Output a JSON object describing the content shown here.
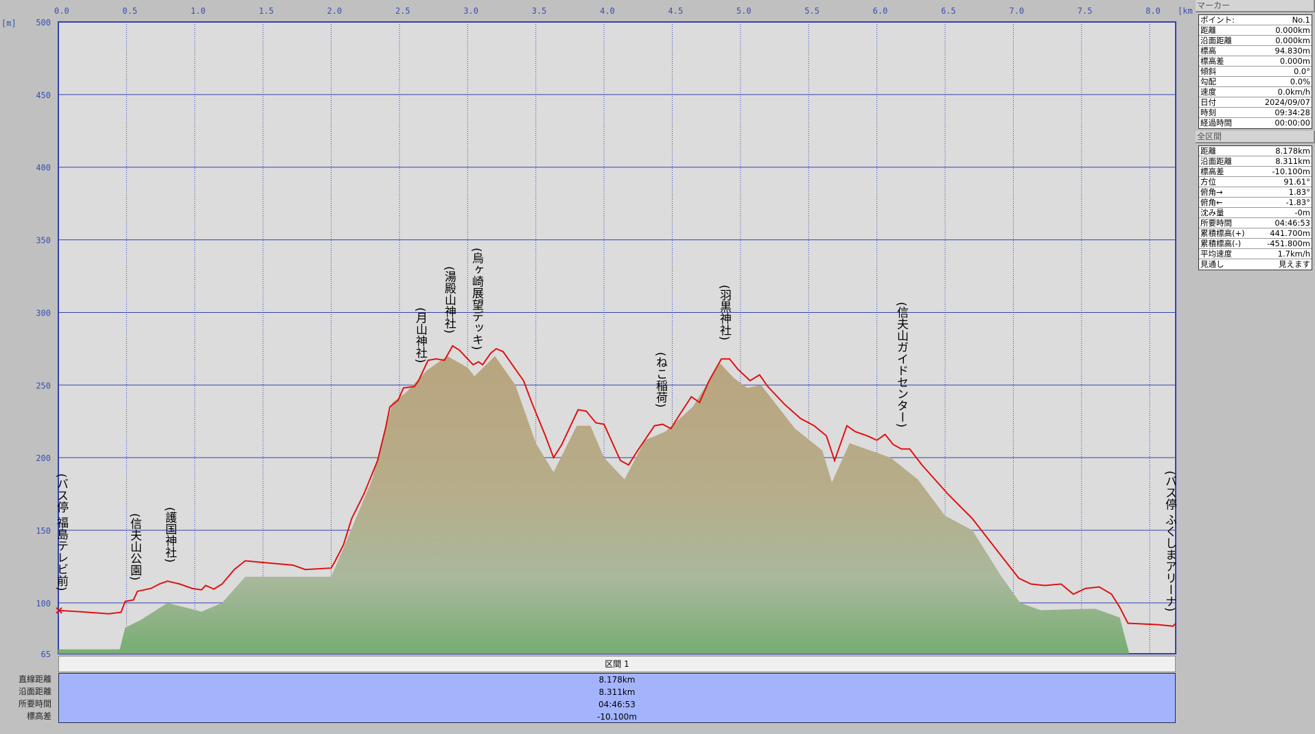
{
  "chart_data": {
    "type": "area",
    "xlabel": "[km]",
    "ylabel": "[m]",
    "xlim": [
      0,
      8.19
    ],
    "ylim": [
      65,
      500
    ],
    "x_ticks": [
      "0.0",
      "0.5",
      "1.0",
      "1.5",
      "2.0",
      "2.5",
      "3.0",
      "3.5",
      "4.0",
      "4.5",
      "5.0",
      "5.5",
      "6.0",
      "6.5",
      "7.0",
      "7.5",
      "8.0"
    ],
    "y_ticks": [
      "500",
      "450",
      "400",
      "350",
      "300",
      "250",
      "200",
      "150",
      "100",
      "65"
    ],
    "grid": true,
    "route_color": "#e01010",
    "route": [
      [
        0,
        94.8
      ],
      [
        0.15,
        94
      ],
      [
        0.37,
        92.5
      ],
      [
        0.46,
        93.6
      ],
      [
        0.49,
        101
      ],
      [
        0.55,
        102
      ],
      [
        0.58,
        108
      ],
      [
        0.68,
        110
      ],
      [
        0.74,
        113
      ],
      [
        0.8,
        115
      ],
      [
        0.89,
        113
      ],
      [
        0.98,
        110
      ],
      [
        1.05,
        109
      ],
      [
        1.08,
        112
      ],
      [
        1.14,
        109.5
      ],
      [
        1.2,
        113
      ],
      [
        1.29,
        123
      ],
      [
        1.37,
        129
      ],
      [
        1.48,
        128
      ],
      [
        1.72,
        126
      ],
      [
        1.81,
        123
      ],
      [
        2.0,
        124
      ],
      [
        2.03,
        129
      ],
      [
        2.09,
        140
      ],
      [
        2.15,
        158
      ],
      [
        2.24,
        175
      ],
      [
        2.34,
        198
      ],
      [
        2.4,
        221
      ],
      [
        2.43,
        235
      ],
      [
        2.49,
        239.5
      ],
      [
        2.53,
        248
      ],
      [
        2.61,
        249
      ],
      [
        2.64,
        253
      ],
      [
        2.71,
        267
      ],
      [
        2.77,
        268
      ],
      [
        2.83,
        267
      ],
      [
        2.89,
        277
      ],
      [
        2.94,
        274
      ],
      [
        3.01,
        267
      ],
      [
        3.04,
        264
      ],
      [
        3.08,
        266
      ],
      [
        3.11,
        264
      ],
      [
        3.17,
        272
      ],
      [
        3.21,
        275
      ],
      [
        3.26,
        273
      ],
      [
        3.35,
        261
      ],
      [
        3.41,
        253
      ],
      [
        3.47,
        238
      ],
      [
        3.57,
        215
      ],
      [
        3.63,
        200
      ],
      [
        3.69,
        209
      ],
      [
        3.81,
        233
      ],
      [
        3.87,
        232
      ],
      [
        3.94,
        224
      ],
      [
        4.0,
        223
      ],
      [
        4.12,
        198
      ],
      [
        4.18,
        195
      ],
      [
        4.24,
        204
      ],
      [
        4.37,
        222
      ],
      [
        4.43,
        223
      ],
      [
        4.49,
        220
      ],
      [
        4.55,
        229
      ],
      [
        4.64,
        242
      ],
      [
        4.7,
        238
      ],
      [
        4.77,
        253
      ],
      [
        4.86,
        268
      ],
      [
        4.92,
        268
      ],
      [
        4.98,
        261
      ],
      [
        5.07,
        253
      ],
      [
        5.14,
        257
      ],
      [
        5.2,
        249
      ],
      [
        5.32,
        237
      ],
      [
        5.44,
        227
      ],
      [
        5.54,
        222
      ],
      [
        5.63,
        215
      ],
      [
        5.69,
        198
      ],
      [
        5.78,
        222
      ],
      [
        5.84,
        218
      ],
      [
        5.93,
        215
      ],
      [
        6.0,
        212
      ],
      [
        6.06,
        216
      ],
      [
        6.12,
        209
      ],
      [
        6.18,
        206
      ],
      [
        6.24,
        206
      ],
      [
        6.33,
        195
      ],
      [
        6.52,
        175
      ],
      [
        6.7,
        158
      ],
      [
        6.89,
        135
      ],
      [
        7.04,
        117
      ],
      [
        7.13,
        113
      ],
      [
        7.23,
        112
      ],
      [
        7.35,
        113
      ],
      [
        7.44,
        106
      ],
      [
        7.53,
        110
      ],
      [
        7.63,
        111
      ],
      [
        7.72,
        106
      ],
      [
        7.78,
        97
      ],
      [
        7.84,
        86
      ],
      [
        8.06,
        85
      ],
      [
        8.17,
        84
      ],
      [
        8.19,
        86
      ]
    ],
    "terrain": [
      [
        0,
        68
      ],
      [
        0.45,
        68
      ],
      [
        0.49,
        83
      ],
      [
        0.6,
        88
      ],
      [
        0.8,
        100
      ],
      [
        1.05,
        94
      ],
      [
        1.2,
        100
      ],
      [
        1.37,
        118
      ],
      [
        1.7,
        118
      ],
      [
        2.0,
        118
      ],
      [
        2.1,
        140
      ],
      [
        2.3,
        185
      ],
      [
        2.45,
        238
      ],
      [
        2.55,
        245
      ],
      [
        2.7,
        260
      ],
      [
        2.85,
        270
      ],
      [
        3.0,
        262
      ],
      [
        3.05,
        256
      ],
      [
        3.2,
        270
      ],
      [
        3.35,
        250
      ],
      [
        3.5,
        210
      ],
      [
        3.63,
        190
      ],
      [
        3.8,
        222
      ],
      [
        3.9,
        222
      ],
      [
        4.0,
        200
      ],
      [
        4.15,
        185
      ],
      [
        4.3,
        212
      ],
      [
        4.45,
        218
      ],
      [
        4.65,
        235
      ],
      [
        4.85,
        265
      ],
      [
        4.95,
        255
      ],
      [
        5.05,
        248
      ],
      [
        5.15,
        250
      ],
      [
        5.4,
        220
      ],
      [
        5.6,
        205
      ],
      [
        5.67,
        183
      ],
      [
        5.8,
        210
      ],
      [
        5.95,
        205
      ],
      [
        6.1,
        200
      ],
      [
        6.3,
        185
      ],
      [
        6.5,
        160
      ],
      [
        6.7,
        150
      ],
      [
        6.9,
        120
      ],
      [
        7.05,
        100
      ],
      [
        7.2,
        95
      ],
      [
        7.6,
        96
      ],
      [
        7.78,
        90
      ],
      [
        7.85,
        65
      ],
      [
        8.19,
        65
      ]
    ],
    "annotations": [
      "(バス停 福島テレビ前)",
      "(信夫山公園)",
      "(護国神社)",
      "(月山神社)",
      "(湯殿山神社)",
      "(烏ヶ崎展望デッキ)",
      "(ねこ稲荷)",
      "(羽黒神社)",
      "(信夫山ガイドセンター)",
      "(バス停 ふくしまアリーナ)"
    ]
  },
  "interval": {
    "title": "区間 1",
    "labels": [
      "直線距離",
      "沿面距離",
      "所要時間",
      "標高差"
    ],
    "values": [
      "8.178km",
      "8.311km",
      "04:46:53",
      "-10.100m"
    ]
  },
  "marker": {
    "title": "マーカー",
    "rows": [
      [
        "ポイント:",
        "No.1"
      ],
      [
        "距離",
        "0.000km"
      ],
      [
        "沿面距離",
        "0.000km"
      ],
      [
        "標高",
        "94.830m"
      ],
      [
        "標高差",
        "0.000m"
      ],
      [
        "傾斜",
        "0.0°"
      ],
      [
        "勾配",
        "0.0%"
      ],
      [
        "速度",
        "0.0km/h"
      ],
      [
        "日付",
        "2024/09/07"
      ],
      [
        "時刻",
        "09:34:28"
      ],
      [
        "経過時間",
        "00:00:00"
      ]
    ]
  },
  "total": {
    "title": "全区間",
    "rows": [
      [
        "距離",
        "8.178km"
      ],
      [
        "沿面距離",
        "8.311km"
      ],
      [
        "標高差",
        "-10.100m"
      ],
      [
        "方位",
        "91.61°"
      ],
      [
        "俯角→",
        "1.83°"
      ],
      [
        "俯角←",
        "-1.83°"
      ],
      [
        "沈み量",
        "-0m"
      ],
      [
        "所要時間",
        "04:46:53"
      ],
      [
        "累積標高(+)",
        "441.700m"
      ],
      [
        "累積標高(-)",
        "-451.800m"
      ],
      [
        "平均速度",
        "1.7km/h"
      ],
      [
        "見通し",
        "見えます"
      ]
    ]
  }
}
